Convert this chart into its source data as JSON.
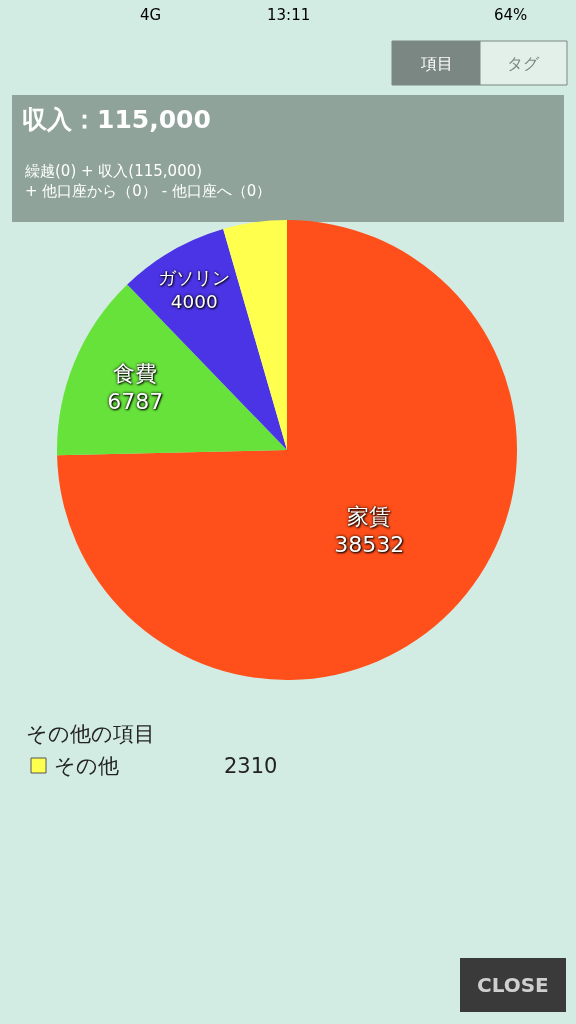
{
  "chart_data": {
    "type": "pie",
    "title": "収入：115,000",
    "subtitle": "繰越(0) + 収入(115,000)\n+ 他口座から（0） - 他口座へ（0）",
    "categories": [
      "家賃",
      "食費",
      "ガソリン",
      "その他"
    ],
    "values": [
      38532,
      6787,
      4000,
      2310
    ],
    "colors": [
      "#ff4f1a",
      "#66e23a",
      "#4b33e6",
      "#ffff4d"
    ],
    "value_labels": [
      "38532",
      "6787",
      "4000",
      "2310"
    ],
    "legend_title": "その他の項目",
    "annotations": [
      "4G",
      "13:11",
      "64%",
      "項目",
      "タグ",
      "CLOSE"
    ]
  }
}
